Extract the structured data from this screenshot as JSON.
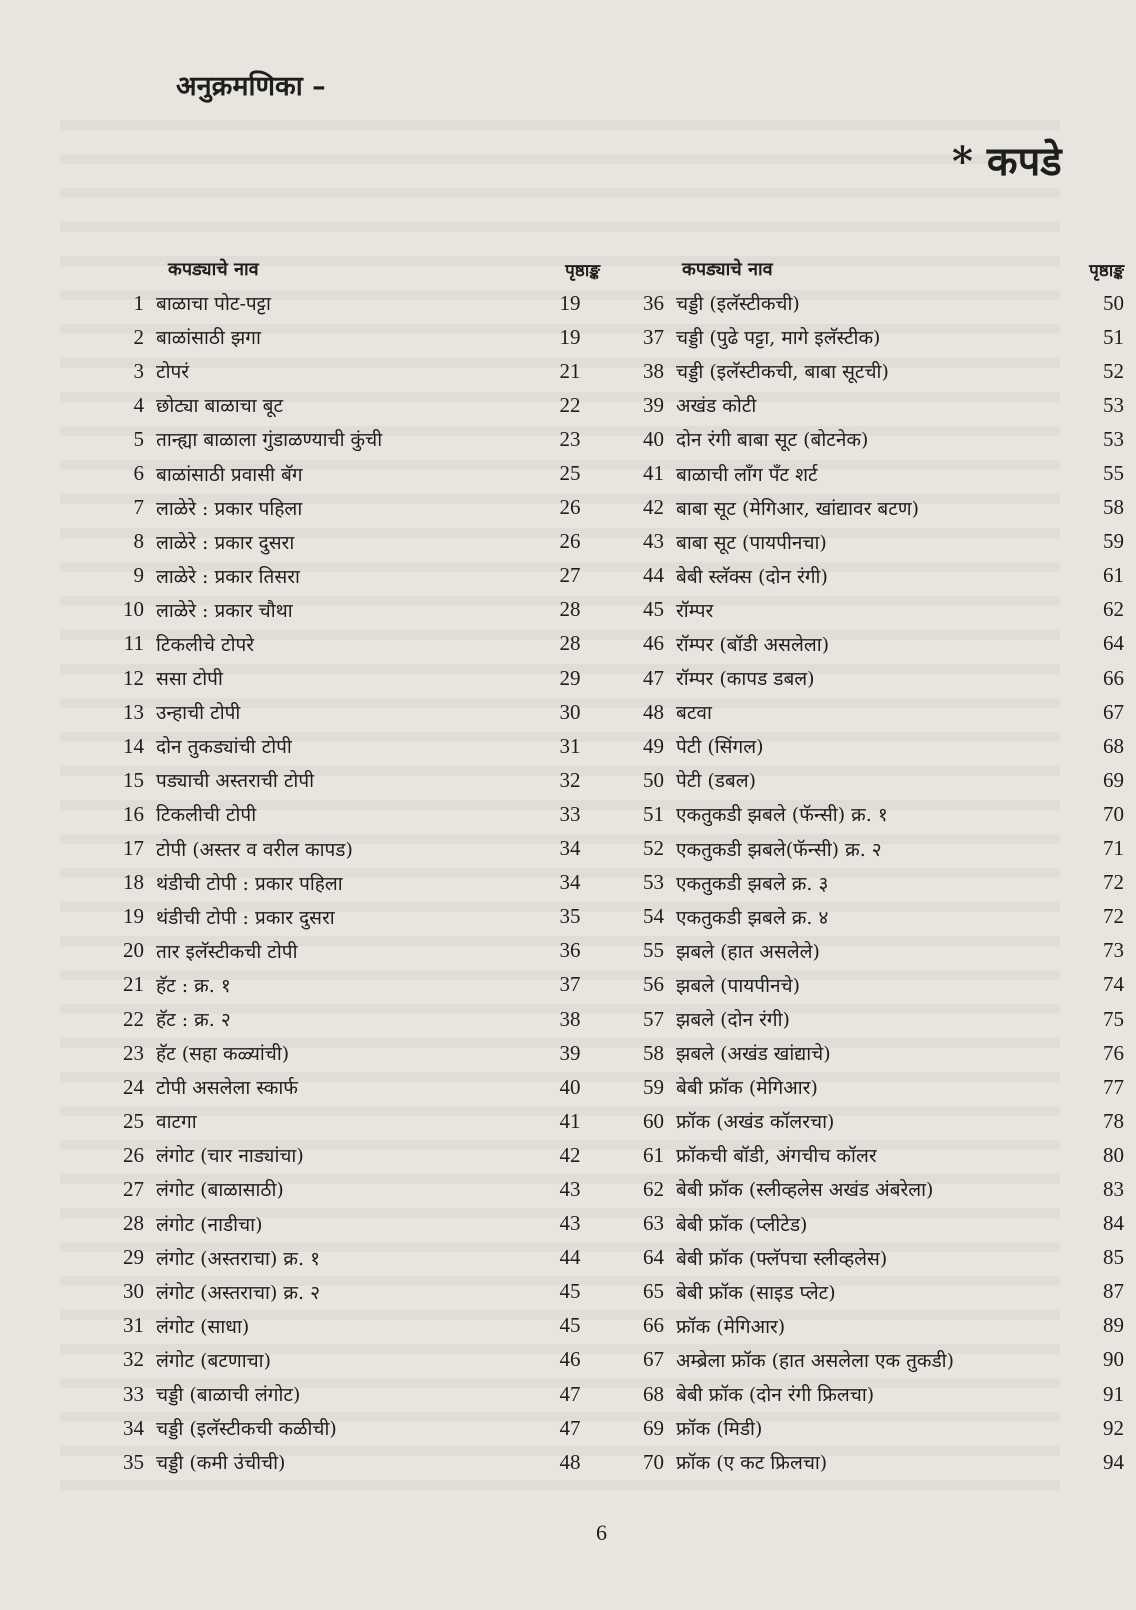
{
  "title": "अनुक्रमणिका –",
  "section": "* कपडे",
  "page_number": "6",
  "columns": {
    "left_header": {
      "name": "कपड्याचे नाव",
      "page": "पृष्ठाङ्क"
    },
    "right_header": {
      "name": "कपड्याचे नाव",
      "page": "पृष्ठाङ्क"
    }
  },
  "left": [
    {
      "no": "1",
      "name": "बाळाचा पोट-पट्टा",
      "page": "19"
    },
    {
      "no": "2",
      "name": "बाळांसाठी झगा",
      "page": "19"
    },
    {
      "no": "3",
      "name": "टोपरं",
      "page": "21"
    },
    {
      "no": "4",
      "name": "छोट्या बाळाचा बूट",
      "page": "22"
    },
    {
      "no": "5",
      "name": "तान्ह्या बाळाला गुंडाळण्याची कुंची",
      "page": "23"
    },
    {
      "no": "6",
      "name": "बाळांसाठी प्रवासी बॅग",
      "page": "25"
    },
    {
      "no": "7",
      "name": "लाळेरे : प्रकार पहिला",
      "page": "26"
    },
    {
      "no": "8",
      "name": "लाळेरे : प्रकार दुसरा",
      "page": "26"
    },
    {
      "no": "9",
      "name": "लाळेरे : प्रकार तिसरा",
      "page": "27"
    },
    {
      "no": "10",
      "name": "लाळेरे : प्रकार चौथा",
      "page": "28"
    },
    {
      "no": "11",
      "name": "टिकलीचे टोपरे",
      "page": "28"
    },
    {
      "no": "12",
      "name": "ससा टोपी",
      "page": "29"
    },
    {
      "no": "13",
      "name": "उन्हाची टोपी",
      "page": "30"
    },
    {
      "no": "14",
      "name": "दोन तुकड्यांची टोपी",
      "page": "31"
    },
    {
      "no": "15",
      "name": "पड्याची अस्तराची टोपी",
      "page": "32"
    },
    {
      "no": "16",
      "name": "टिकलीची टोपी",
      "page": "33"
    },
    {
      "no": "17",
      "name": "टोपी (अस्तर व वरील कापड)",
      "page": "34"
    },
    {
      "no": "18",
      "name": "थंडीची टोपी : प्रकार पहिला",
      "page": "34"
    },
    {
      "no": "19",
      "name": "थंडीची टोपी : प्रकार दुसरा",
      "page": "35"
    },
    {
      "no": "20",
      "name": "तार इलॅस्टीकची टोपी",
      "page": "36"
    },
    {
      "no": "21",
      "name": "हॅट : क्र. १",
      "page": "37"
    },
    {
      "no": "22",
      "name": "हॅट : क्र. २",
      "page": "38"
    },
    {
      "no": "23",
      "name": "हॅट (सहा कळ्यांची)",
      "page": "39"
    },
    {
      "no": "24",
      "name": "टोपी असलेला स्कार्फ",
      "page": "40"
    },
    {
      "no": "25",
      "name": "वाटगा",
      "page": "41"
    },
    {
      "no": "26",
      "name": "लंगोट (चार नाड्यांचा)",
      "page": "42"
    },
    {
      "no": "27",
      "name": "लंगोट (बाळासाठी)",
      "page": "43"
    },
    {
      "no": "28",
      "name": "लंगोट (नाडीचा)",
      "page": "43"
    },
    {
      "no": "29",
      "name": "लंगोट (अस्तराचा) क्र. १",
      "page": "44"
    },
    {
      "no": "30",
      "name": "लंगोट (अस्तराचा) क्र. २",
      "page": "45"
    },
    {
      "no": "31",
      "name": "लंगोट (साधा)",
      "page": "45"
    },
    {
      "no": "32",
      "name": "लंगोट (बटणाचा)",
      "page": "46"
    },
    {
      "no": "33",
      "name": "चड्डी (बाळाची लंगोट)",
      "page": "47"
    },
    {
      "no": "34",
      "name": "चड्डी (इलॅस्टीकची कळीची)",
      "page": "47"
    },
    {
      "no": "35",
      "name": "चड्डी (कमी उंचीची)",
      "page": "48"
    }
  ],
  "right": [
    {
      "no": "36",
      "name": "चड्डी (इलॅस्टीकची)",
      "page": "50"
    },
    {
      "no": "37",
      "name": "चड्डी (पुढे पट्टा, मागे इलॅस्टीक)",
      "page": "51"
    },
    {
      "no": "38",
      "name": "चड्डी (इलॅस्टीकची, बाबा सूटची)",
      "page": "52"
    },
    {
      "no": "39",
      "name": "अखंड कोटी",
      "page": "53"
    },
    {
      "no": "40",
      "name": "दोन रंगी बाबा सूट (बोटनेक)",
      "page": "53"
    },
    {
      "no": "41",
      "name": "बाळाची लाँग पँट शर्ट",
      "page": "55"
    },
    {
      "no": "42",
      "name": "बाबा सूट (मेगिआर, खांद्यावर बटण)",
      "page": "58"
    },
    {
      "no": "43",
      "name": "बाबा सूट (पायपीनचा)",
      "page": "59"
    },
    {
      "no": "44",
      "name": "बेबी स्लॅक्स (दोन रंगी)",
      "page": "61"
    },
    {
      "no": "45",
      "name": "रॉम्पर",
      "page": "62"
    },
    {
      "no": "46",
      "name": "रॉम्पर (बॉडी असलेला)",
      "page": "64"
    },
    {
      "no": "47",
      "name": "रॉम्पर (कापड डबल)",
      "page": "66"
    },
    {
      "no": "48",
      "name": "बटवा",
      "page": "67"
    },
    {
      "no": "49",
      "name": "पेटी (सिंगल)",
      "page": "68"
    },
    {
      "no": "50",
      "name": "पेटी (डबल)",
      "page": "69"
    },
    {
      "no": "51",
      "name": "एकतुकडी झबले (फॅन्सी) क्र. १",
      "page": "70"
    },
    {
      "no": "52",
      "name": "एकतुकडी झबले(फॅन्सी) क्र. २",
      "page": "71"
    },
    {
      "no": "53",
      "name": "एकतुकडी झबले क्र. ३",
      "page": "72"
    },
    {
      "no": "54",
      "name": "एकतुकडी झबले क्र. ४",
      "page": "72"
    },
    {
      "no": "55",
      "name": "झबले (हात असलेले)",
      "page": "73"
    },
    {
      "no": "56",
      "name": "झबले (पायपीनचे)",
      "page": "74"
    },
    {
      "no": "57",
      "name": "झबले (दोन रंगी)",
      "page": "75"
    },
    {
      "no": "58",
      "name": "झबले (अखंड खांद्याचे)",
      "page": "76"
    },
    {
      "no": "59",
      "name": "बेबी फ्रॉक (मेगिआर)",
      "page": "77"
    },
    {
      "no": "60",
      "name": "फ्रॉक (अखंड कॉलरचा)",
      "page": "78"
    },
    {
      "no": "61",
      "name": "फ्रॉकची बॉडी, अंगचीच कॉलर",
      "page": "80"
    },
    {
      "no": "62",
      "name": "बेबी फ्रॉक (स्लीव्हलेस अखंड अंबरेला)",
      "page": "83"
    },
    {
      "no": "63",
      "name": "बेबी फ्रॉक (प्लीटेड)",
      "page": "84"
    },
    {
      "no": "64",
      "name": "बेबी फ्रॉक (फ्लॅपचा स्लीव्हलेस)",
      "page": "85"
    },
    {
      "no": "65",
      "name": "बेबी फ्रॉक (साइड प्लेट)",
      "page": "87"
    },
    {
      "no": "66",
      "name": "फ्रॉक (मेगिआर)",
      "page": "89"
    },
    {
      "no": "67",
      "name": "अम्ब्रेला फ्रॉक (हात असलेला एक तुकडी)",
      "page": "90"
    },
    {
      "no": "68",
      "name": "बेबी फ्रॉक (दोन रंगी फ्रिलचा)",
      "page": "91"
    },
    {
      "no": "69",
      "name": "फ्रॉक (मिडी)",
      "page": "92"
    },
    {
      "no": "70",
      "name": "फ्रॉक (ए कट फ्रिलचा)",
      "page": "94"
    }
  ]
}
